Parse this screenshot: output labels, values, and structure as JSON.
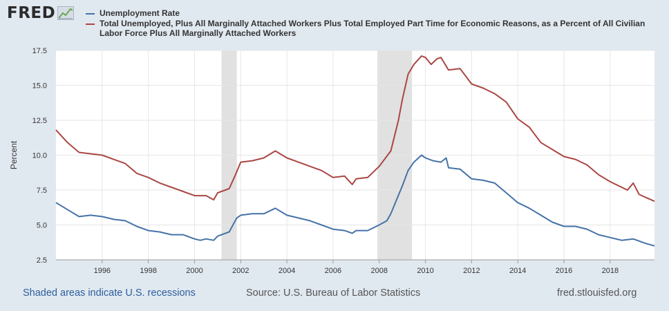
{
  "brand": {
    "logo_text": "FRED"
  },
  "footer": {
    "recessions_note": "Shaded areas indicate U.S. recessions",
    "source": "Source: U.S. Bureau of Labor Statistics",
    "site": "fred.stlouisfed.org"
  },
  "chart_data": {
    "type": "line",
    "ylabel": "Percent",
    "xlim": [
      1994.0,
      2019.92
    ],
    "ylim": [
      2.5,
      17.5
    ],
    "y_ticks": [
      "2.5",
      "5.0",
      "7.5",
      "10.0",
      "12.5",
      "15.0",
      "17.5"
    ],
    "x_ticks": [
      "1996",
      "1998",
      "2000",
      "2002",
      "2004",
      "2006",
      "2008",
      "2010",
      "2012",
      "2014",
      "2016",
      "2018"
    ],
    "grid": true,
    "legend_position": "top",
    "recessions": [
      [
        2001.17,
        2001.83
      ],
      [
        2007.92,
        2009.42
      ]
    ],
    "recession_color": "#e1e1e1",
    "series": [
      {
        "name": "Unemployment Rate",
        "color": "#4572a7",
        "points": [
          [
            1994.0,
            6.6
          ],
          [
            1994.5,
            6.1
          ],
          [
            1995.0,
            5.6
          ],
          [
            1995.5,
            5.7
          ],
          [
            1996.0,
            5.6
          ],
          [
            1996.5,
            5.4
          ],
          [
            1997.0,
            5.3
          ],
          [
            1997.5,
            4.9
          ],
          [
            1998.0,
            4.6
          ],
          [
            1998.5,
            4.5
          ],
          [
            1999.0,
            4.3
          ],
          [
            1999.5,
            4.3
          ],
          [
            2000.0,
            4.0
          ],
          [
            2000.25,
            3.9
          ],
          [
            2000.5,
            4.0
          ],
          [
            2000.83,
            3.9
          ],
          [
            2001.0,
            4.2
          ],
          [
            2001.5,
            4.5
          ],
          [
            2001.83,
            5.5
          ],
          [
            2002.0,
            5.7
          ],
          [
            2002.5,
            5.8
          ],
          [
            2003.0,
            5.8
          ],
          [
            2003.5,
            6.2
          ],
          [
            2004.0,
            5.7
          ],
          [
            2004.5,
            5.5
          ],
          [
            2005.0,
            5.3
          ],
          [
            2005.5,
            5.0
          ],
          [
            2006.0,
            4.7
          ],
          [
            2006.5,
            4.6
          ],
          [
            2006.83,
            4.4
          ],
          [
            2007.0,
            4.6
          ],
          [
            2007.5,
            4.6
          ],
          [
            2008.0,
            5.0
          ],
          [
            2008.33,
            5.3
          ],
          [
            2008.5,
            5.8
          ],
          [
            2008.75,
            6.8
          ],
          [
            2009.0,
            7.8
          ],
          [
            2009.25,
            8.9
          ],
          [
            2009.5,
            9.5
          ],
          [
            2009.83,
            10.0
          ],
          [
            2010.0,
            9.8
          ],
          [
            2010.33,
            9.6
          ],
          [
            2010.67,
            9.5
          ],
          [
            2010.9,
            9.8
          ],
          [
            2011.0,
            9.1
          ],
          [
            2011.5,
            9.0
          ],
          [
            2012.0,
            8.3
          ],
          [
            2012.5,
            8.2
          ],
          [
            2013.0,
            8.0
          ],
          [
            2013.5,
            7.3
          ],
          [
            2014.0,
            6.6
          ],
          [
            2014.5,
            6.2
          ],
          [
            2015.0,
            5.7
          ],
          [
            2015.5,
            5.2
          ],
          [
            2016.0,
            4.9
          ],
          [
            2016.5,
            4.9
          ],
          [
            2017.0,
            4.7
          ],
          [
            2017.5,
            4.3
          ],
          [
            2018.0,
            4.1
          ],
          [
            2018.5,
            3.9
          ],
          [
            2019.0,
            4.0
          ],
          [
            2019.5,
            3.7
          ],
          [
            2019.92,
            3.5
          ]
        ]
      },
      {
        "name": "Total Unemployed, Plus All Marginally Attached Workers Plus Total Employed Part Time for Economic Reasons, as a Percent of All Civilian Labor Force Plus All Marginally Attached Workers",
        "color": "#aa4643",
        "points": [
          [
            1994.0,
            11.8
          ],
          [
            1994.5,
            10.9
          ],
          [
            1995.0,
            10.2
          ],
          [
            1995.5,
            10.1
          ],
          [
            1996.0,
            10.0
          ],
          [
            1996.5,
            9.7
          ],
          [
            1997.0,
            9.4
          ],
          [
            1997.5,
            8.7
          ],
          [
            1998.0,
            8.4
          ],
          [
            1998.5,
            8.0
          ],
          [
            1999.0,
            7.7
          ],
          [
            1999.5,
            7.4
          ],
          [
            2000.0,
            7.1
          ],
          [
            2000.5,
            7.1
          ],
          [
            2000.83,
            6.8
          ],
          [
            2001.0,
            7.3
          ],
          [
            2001.5,
            7.6
          ],
          [
            2001.75,
            8.5
          ],
          [
            2002.0,
            9.5
          ],
          [
            2002.5,
            9.6
          ],
          [
            2003.0,
            9.8
          ],
          [
            2003.5,
            10.3
          ],
          [
            2004.0,
            9.8
          ],
          [
            2004.5,
            9.5
          ],
          [
            2005.0,
            9.2
          ],
          [
            2005.5,
            8.9
          ],
          [
            2006.0,
            8.4
          ],
          [
            2006.5,
            8.5
          ],
          [
            2006.83,
            7.9
          ],
          [
            2007.0,
            8.3
          ],
          [
            2007.5,
            8.4
          ],
          [
            2008.0,
            9.2
          ],
          [
            2008.5,
            10.3
          ],
          [
            2008.83,
            12.5
          ],
          [
            2009.0,
            14.0
          ],
          [
            2009.25,
            15.8
          ],
          [
            2009.5,
            16.5
          ],
          [
            2009.83,
            17.1
          ],
          [
            2010.0,
            17.0
          ],
          [
            2010.25,
            16.5
          ],
          [
            2010.5,
            16.9
          ],
          [
            2010.67,
            17.0
          ],
          [
            2011.0,
            16.1
          ],
          [
            2011.5,
            16.2
          ],
          [
            2012.0,
            15.1
          ],
          [
            2012.5,
            14.8
          ],
          [
            2013.0,
            14.4
          ],
          [
            2013.5,
            13.8
          ],
          [
            2014.0,
            12.6
          ],
          [
            2014.5,
            12.0
          ],
          [
            2015.0,
            10.9
          ],
          [
            2015.5,
            10.4
          ],
          [
            2016.0,
            9.9
          ],
          [
            2016.5,
            9.7
          ],
          [
            2017.0,
            9.3
          ],
          [
            2017.5,
            8.6
          ],
          [
            2018.0,
            8.1
          ],
          [
            2018.5,
            7.7
          ],
          [
            2018.75,
            7.5
          ],
          [
            2019.0,
            8.0
          ],
          [
            2019.25,
            7.2
          ],
          [
            2019.5,
            7.0
          ],
          [
            2019.92,
            6.7
          ]
        ]
      }
    ]
  }
}
